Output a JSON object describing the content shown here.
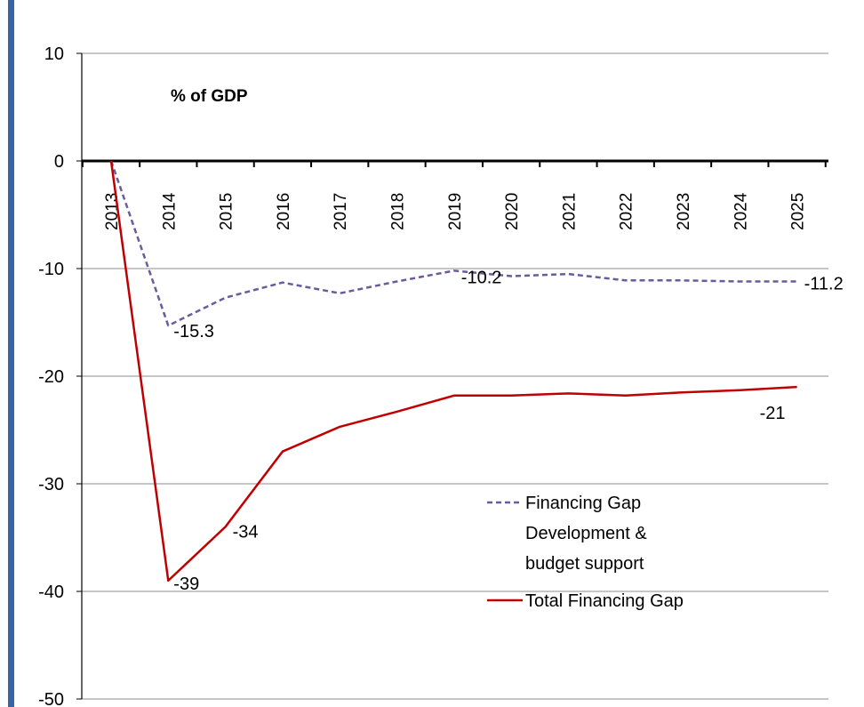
{
  "chart_data": {
    "type": "line",
    "unit_label": "% of GDP",
    "categories": [
      "2013",
      "2014",
      "2015",
      "2016",
      "2017",
      "2018",
      "2019",
      "2020",
      "2021",
      "2022",
      "2023",
      "2024",
      "2025"
    ],
    "ylim": [
      -50,
      10
    ],
    "yticks": [
      10,
      0,
      -10,
      -20,
      -30,
      -40,
      -50
    ],
    "grid": true,
    "legend_position": "lower-right",
    "series": [
      {
        "name": "Financing Gap Development & budget support",
        "name_lines": [
          "Financing Gap",
          "Development &",
          "budget support"
        ],
        "style": "dashed",
        "color": "#6b5b9a",
        "values": [
          0,
          -15.3,
          -12.7,
          -11.3,
          -12.3,
          -11.2,
          -10.2,
          -10.7,
          -10.5,
          -11.1,
          -11.1,
          -11.2,
          -11.2
        ],
        "labels": [
          {
            "index": 1,
            "text": "-15.3"
          },
          {
            "index": 6,
            "text": "-10.2"
          },
          {
            "index": 12,
            "text": "-11.2"
          }
        ]
      },
      {
        "name": "Total Financing Gap",
        "name_lines": [
          "Total Financing Gap"
        ],
        "style": "solid",
        "color": "#c00000",
        "values": [
          0,
          -39,
          -34,
          -27,
          -24.7,
          -23.3,
          -21.8,
          -21.8,
          -21.6,
          -21.8,
          -21.5,
          -21.3,
          -21
        ],
        "labels": [
          {
            "index": 1,
            "text": "-39"
          },
          {
            "index": 2,
            "text": "-34"
          },
          {
            "index": 12,
            "text": "-21"
          }
        ]
      }
    ]
  }
}
